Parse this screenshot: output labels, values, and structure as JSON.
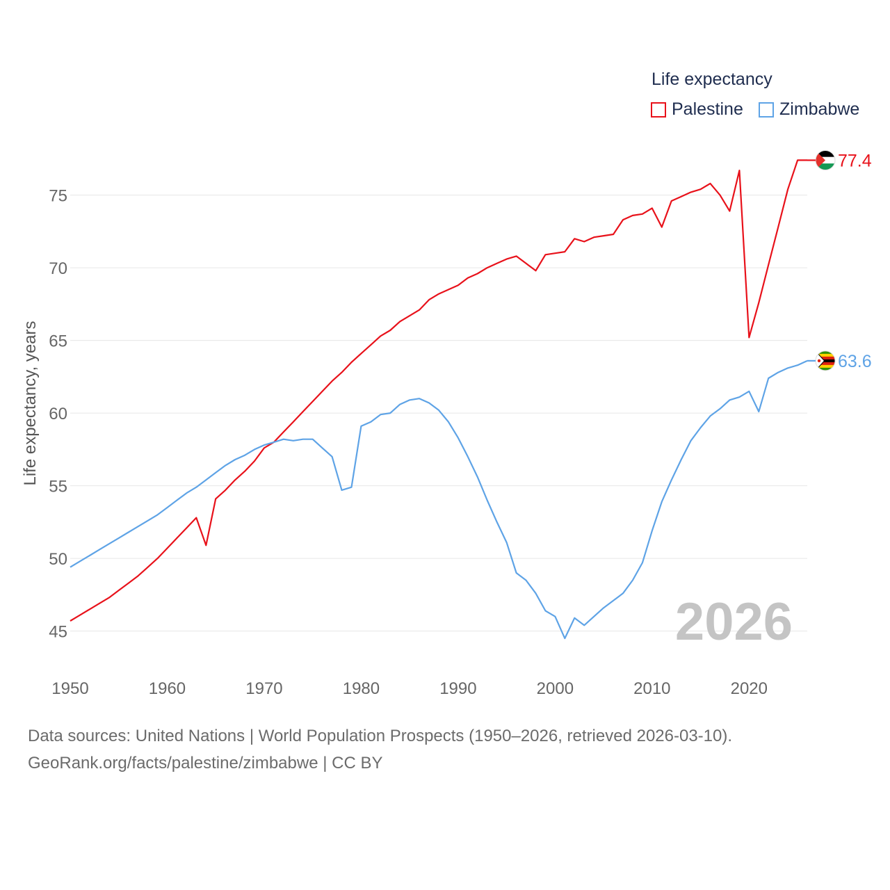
{
  "legend": {
    "title": "Life expectancy",
    "items": [
      {
        "label": "Palestine",
        "color": "#e8111a"
      },
      {
        "label": "Zimbabwe",
        "color": "#5ea3e6"
      }
    ]
  },
  "footer": {
    "line1": "Data sources: United Nations | World Population Prospects (1950–2026, retrieved 2026-03-10).",
    "line2": "GeoRank.org/facts/palestine/zimbabwe | CC BY"
  },
  "chart_data": {
    "type": "line",
    "title": "Life expectancy",
    "ylabel": "Life expectancy, years",
    "xlabel": "",
    "year_label": "2026",
    "xlim": [
      1950,
      2026
    ],
    "ylim": [
      43.5,
      79
    ],
    "x_ticks": [
      1950,
      1960,
      1970,
      1980,
      1990,
      2000,
      2010,
      2020
    ],
    "y_ticks": [
      45,
      50,
      55,
      60,
      65,
      70,
      75
    ],
    "grid": true,
    "x": [
      1950,
      1951,
      1952,
      1953,
      1954,
      1955,
      1956,
      1957,
      1958,
      1959,
      1960,
      1961,
      1962,
      1963,
      1964,
      1965,
      1966,
      1967,
      1968,
      1969,
      1970,
      1971,
      1972,
      1973,
      1974,
      1975,
      1976,
      1977,
      1978,
      1979,
      1980,
      1981,
      1982,
      1983,
      1984,
      1985,
      1986,
      1987,
      1988,
      1989,
      1990,
      1991,
      1992,
      1993,
      1994,
      1995,
      1996,
      1997,
      1998,
      1999,
      2000,
      2001,
      2002,
      2003,
      2004,
      2005,
      2006,
      2007,
      2008,
      2009,
      2010,
      2011,
      2012,
      2013,
      2014,
      2015,
      2016,
      2017,
      2018,
      2019,
      2020,
      2021,
      2022,
      2023,
      2024,
      2025,
      2026
    ],
    "series": [
      {
        "name": "Palestine",
        "color": "#e8111a",
        "end_label": "77.4",
        "values": [
          45.7,
          46.1,
          46.5,
          46.9,
          47.3,
          47.8,
          48.3,
          48.8,
          49.4,
          50.0,
          50.7,
          51.4,
          52.1,
          52.8,
          50.9,
          54.1,
          54.7,
          55.4,
          56.0,
          56.7,
          57.6,
          58.0,
          58.7,
          59.4,
          60.1,
          60.8,
          61.5,
          62.2,
          62.8,
          63.5,
          64.1,
          64.7,
          65.3,
          65.7,
          66.3,
          66.7,
          67.1,
          67.8,
          68.2,
          68.5,
          68.8,
          69.3,
          69.6,
          70.0,
          70.3,
          70.6,
          70.8,
          70.3,
          69.8,
          70.9,
          71.0,
          71.1,
          72.0,
          71.8,
          72.1,
          72.2,
          72.3,
          73.3,
          73.6,
          73.7,
          74.1,
          72.8,
          74.6,
          74.9,
          75.2,
          75.4,
          75.8,
          75.0,
          73.9,
          76.7,
          65.2,
          67.6,
          70.2,
          72.8,
          75.4,
          77.4,
          77.4
        ]
      },
      {
        "name": "Zimbabwe",
        "color": "#5ea3e6",
        "end_label": "63.6",
        "values": [
          49.4,
          49.8,
          50.2,
          50.6,
          51.0,
          51.4,
          51.8,
          52.2,
          52.6,
          53.0,
          53.5,
          54.0,
          54.5,
          54.9,
          55.4,
          55.9,
          56.4,
          56.8,
          57.1,
          57.5,
          57.8,
          58.0,
          58.2,
          58.1,
          58.2,
          58.2,
          57.6,
          57.0,
          54.7,
          54.9,
          59.1,
          59.4,
          59.9,
          60.0,
          60.6,
          60.9,
          61.0,
          60.7,
          60.2,
          59.4,
          58.3,
          57.0,
          55.6,
          54.0,
          52.5,
          51.1,
          49.0,
          48.5,
          47.6,
          46.4,
          46.0,
          44.5,
          45.9,
          45.4,
          46.0,
          46.6,
          47.1,
          47.6,
          48.5,
          49.7,
          51.9,
          53.9,
          55.4,
          56.8,
          58.1,
          59.0,
          59.8,
          60.3,
          60.9,
          61.1,
          61.5,
          60.1,
          62.4,
          62.8,
          63.1,
          63.3,
          63.6
        ]
      }
    ]
  }
}
